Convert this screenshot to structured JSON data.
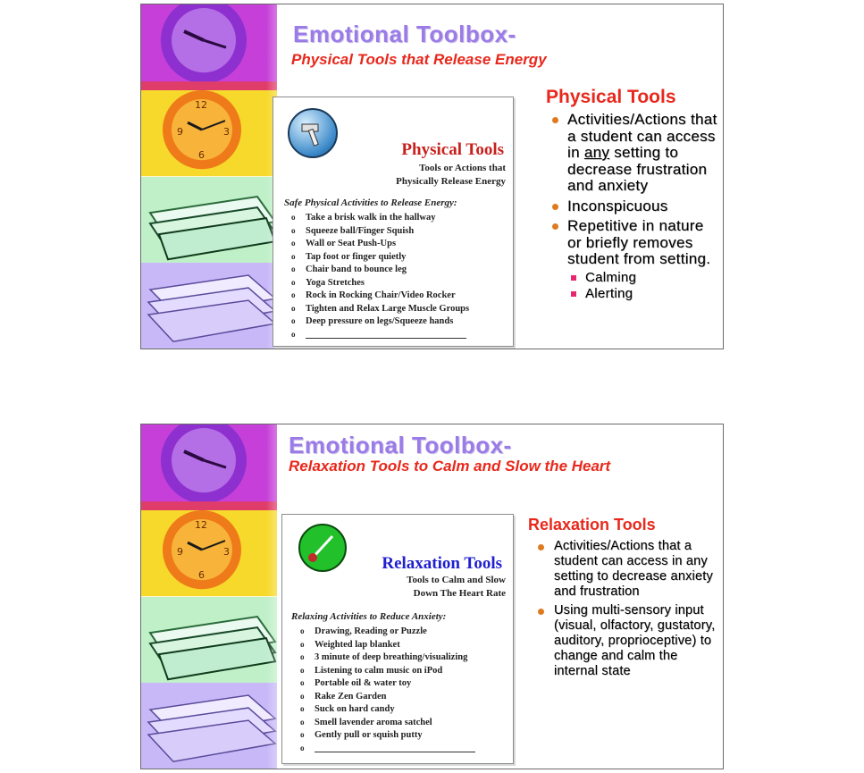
{
  "slides": [
    {
      "title": "Emotional Toolbox-",
      "subtitle": "Physical Tools that Release Energy",
      "card": {
        "icon": "hammer-icon",
        "title": "Physical Tools",
        "subtitle_line1": "Tools or Actions that",
        "subtitle_line2": "Physically Release Energy",
        "lead": "Safe Physical Activities to Release Energy:",
        "items": [
          "Take a brisk walk in the hallway",
          "Squeeze ball/Finger Squish",
          "Wall or Seat Push-Ups",
          "Tap foot or finger quietly",
          "Chair band to bounce leg",
          "Yoga Stretches",
          "Rock in Rocking Chair/Video Rocker",
          "Tighten and Relax Large Muscle Groups",
          "Deep pressure on legs/Squeeze hands"
        ]
      },
      "right": {
        "heading": "Physical Tools",
        "bullet1_pre": "Activities/Actions that a student can access in ",
        "bullet1_emph": "any",
        "bullet1_post": " setting to decrease frustration and anxiety",
        "bullet2": "Inconspicuous",
        "bullet3": "Repetitive in nature or briefly removes student from setting.",
        "sub_items": [
          "Calming",
          "Alerting"
        ]
      }
    },
    {
      "title": "Emotional Toolbox-",
      "subtitle": "Relaxation Tools to Calm and Slow the Heart",
      "card": {
        "icon": "paintbrush-icon",
        "title": "Relaxation Tools",
        "subtitle_line1": "Tools to Calm and Slow",
        "subtitle_line2": "Down The Heart Rate",
        "lead": "Relaxing Activities to Reduce Anxiety:",
        "items": [
          "Drawing, Reading or Puzzle",
          "Weighted lap blanket",
          "3 minute of deep breathing/visualizing",
          "Listening to calm music on iPod",
          "Portable oil & water toy",
          "Rake Zen Garden",
          "Suck on hard candy",
          "Smell lavender aroma satchel",
          "Gently pull or squish putty"
        ]
      },
      "right": {
        "heading": "Relaxation Tools",
        "bullet1": "Activities/Actions that a student can access in any setting to decrease anxiety and frustration",
        "bullet2": "Using multi-sensory input (visual, olfactory, gustatory, auditory, proprioceptive) to change and calm the internal state"
      }
    }
  ],
  "colors": {
    "title": "#9b7be8",
    "subtitle": "#e8281c",
    "card_title_1": "#c8201c",
    "card_title_2": "#1f1fd0",
    "bullet": "#e07a1f",
    "sub_bullet": "#e8286e"
  }
}
